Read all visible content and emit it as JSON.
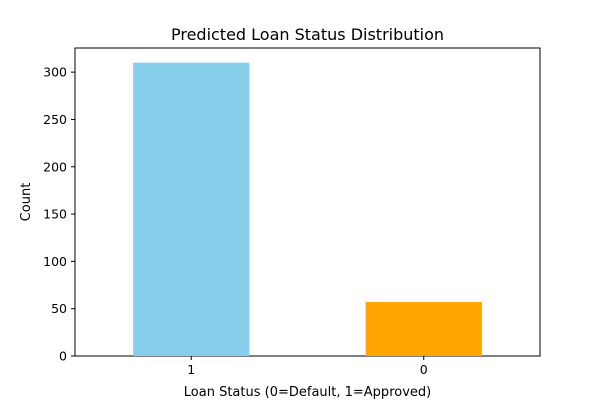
{
  "chart_data": {
    "type": "bar",
    "title": "Predicted Loan Status Distribution",
    "xlabel": "Loan Status (0=Default, 1=Approved)",
    "ylabel": "Count",
    "categories": [
      "1",
      "0"
    ],
    "values": [
      310,
      57
    ],
    "colors": [
      "#87CEEB",
      "#FFA500"
    ],
    "ylim": [
      0,
      325.5
    ],
    "yticks": [
      0,
      50,
      100,
      150,
      200,
      250,
      300
    ],
    "grid": false,
    "legend": "none"
  }
}
